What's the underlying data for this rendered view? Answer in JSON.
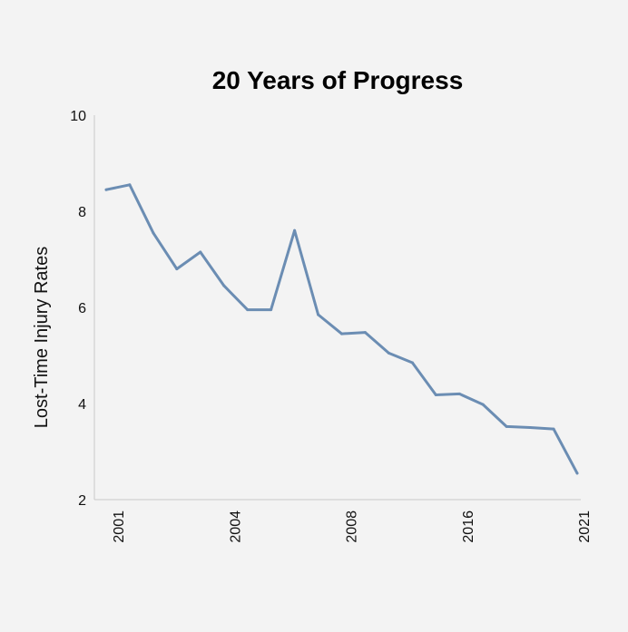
{
  "chart_data": {
    "type": "line",
    "title": "20 Years of Progress",
    "xlabel": "",
    "ylabel": "Lost-Time Injury Rates",
    "ylim": [
      2,
      10
    ],
    "yticks": [
      "2",
      "4",
      "6",
      "8",
      "10"
    ],
    "xticks": [
      "2001",
      "2004",
      "2008",
      "2016",
      "2021"
    ],
    "grid": false,
    "legend": "none",
    "line_color": "#6b8db3",
    "series": [
      {
        "values": [
          8.45,
          8.55,
          7.55,
          6.8,
          7.15,
          6.45,
          5.95,
          5.95,
          7.6,
          5.85,
          5.45,
          5.48,
          5.05,
          4.85,
          4.18,
          4.2,
          3.98,
          3.52,
          3.5,
          3.47,
          2.55
        ]
      }
    ]
  }
}
